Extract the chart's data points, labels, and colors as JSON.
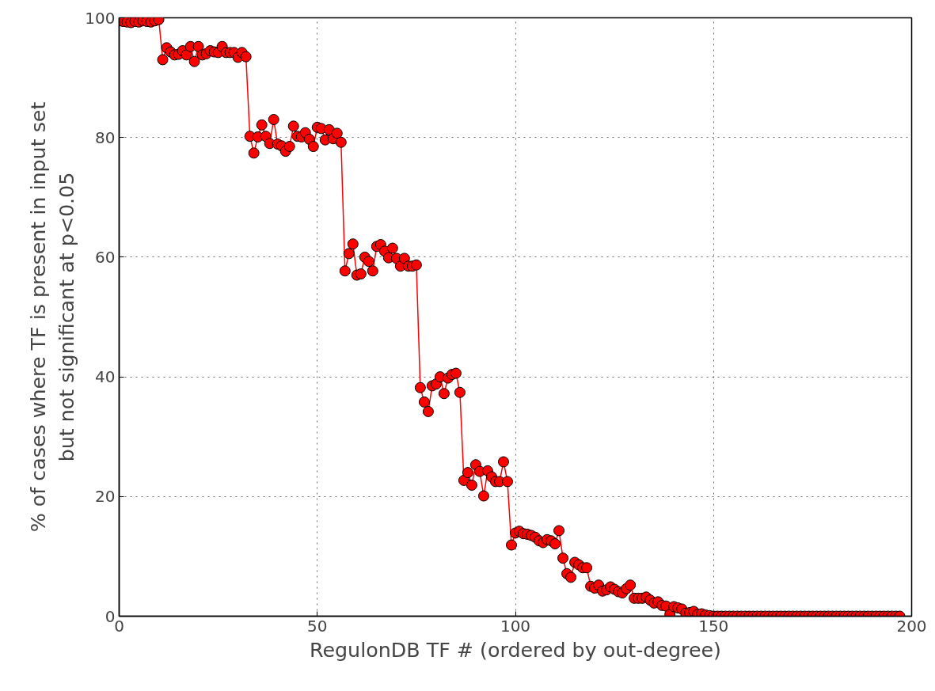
{
  "chart_data": {
    "type": "line",
    "xlabel": "RegulonDB TF # (ordered by out-degree)",
    "ylabel": "% of cases where TF is present in input set\nbut not significant at p<0.05",
    "xlim": [
      0,
      200
    ],
    "ylim": [
      0,
      100
    ],
    "xticks": [
      0,
      50,
      100,
      150,
      200
    ],
    "yticks": [
      0,
      20,
      40,
      60,
      80,
      100
    ],
    "grid": true,
    "marker": "circle",
    "line_style": "solid",
    "x": [
      0,
      1,
      2,
      3,
      4,
      5,
      6,
      7,
      8,
      9,
      10,
      11,
      12,
      13,
      14,
      15,
      16,
      17,
      18,
      19,
      20,
      21,
      22,
      23,
      24,
      25,
      26,
      27,
      28,
      29,
      30,
      31,
      32,
      33,
      34,
      35,
      36,
      37,
      38,
      39,
      40,
      41,
      42,
      43,
      44,
      45,
      46,
      47,
      48,
      49,
      50,
      51,
      52,
      53,
      54,
      55,
      56,
      57,
      58,
      59,
      60,
      61,
      62,
      63,
      64,
      65,
      66,
      67,
      68,
      69,
      70,
      71,
      72,
      73,
      74,
      75,
      76,
      77,
      78,
      79,
      80,
      81,
      82,
      83,
      84,
      85,
      86,
      87,
      88,
      89,
      90,
      91,
      92,
      93,
      94,
      95,
      96,
      97,
      98,
      99,
      100,
      101,
      102,
      103,
      104,
      105,
      106,
      107,
      108,
      109,
      110,
      111,
      112,
      113,
      114,
      115,
      116,
      117,
      118,
      119,
      120,
      121,
      122,
      123,
      124,
      125,
      126,
      127,
      128,
      129,
      130,
      131,
      132,
      133,
      134,
      135,
      136,
      137,
      138,
      139,
      140,
      141,
      142,
      143,
      144,
      145,
      146,
      147,
      148,
      149,
      150,
      151,
      152,
      153,
      154,
      155,
      156,
      157,
      158,
      159,
      160,
      161,
      162,
      163,
      164,
      165,
      166,
      167,
      168,
      169,
      170,
      171,
      172,
      173,
      174,
      175,
      176,
      177,
      178,
      179,
      180,
      181,
      182,
      183,
      184,
      185,
      186,
      187,
      188,
      189,
      190,
      191,
      192,
      193,
      194,
      195,
      196,
      197
    ],
    "series": [
      {
        "color": "#ff0000",
        "values": [
          99.5,
          99.4,
          99.3,
          99.2,
          99.4,
          99.3,
          99.5,
          99.4,
          99.3,
          99.5,
          99.7,
          93.0,
          95.0,
          94.3,
          93.8,
          93.9,
          94.5,
          93.8,
          95.2,
          92.7,
          95.2,
          93.8,
          94.0,
          94.5,
          94.3,
          94.2,
          95.2,
          94.2,
          94.2,
          94.2,
          93.4,
          94.2,
          93.5,
          80.2,
          77.4,
          80.1,
          82.1,
          80.2,
          79.0,
          83.0,
          78.9,
          78.6,
          77.7,
          78.5,
          81.9,
          80.2,
          80.1,
          80.8,
          79.7,
          78.5,
          81.7,
          81.5,
          79.6,
          81.3,
          79.8,
          80.7,
          79.2,
          57.7,
          60.6,
          62.2,
          57.0,
          57.2,
          60.0,
          59.3,
          57.7,
          61.8,
          62.1,
          61.0,
          59.9,
          61.5,
          59.8,
          58.5,
          59.8,
          58.5,
          58.5,
          58.7,
          38.2,
          35.8,
          34.2,
          38.5,
          38.8,
          40.0,
          37.2,
          39.8,
          40.4,
          40.6,
          37.4,
          22.7,
          24.0,
          21.9,
          25.3,
          24.2,
          20.1,
          24.3,
          23.3,
          22.5,
          22.5,
          25.8,
          22.5,
          11.9,
          13.9,
          14.2,
          13.8,
          13.7,
          13.5,
          13.2,
          12.6,
          12.3,
          12.8,
          12.6,
          12.1,
          14.3,
          9.7,
          7.1,
          6.5,
          9.0,
          8.6,
          8.1,
          8.1,
          5.0,
          4.7,
          5.2,
          4.2,
          4.4,
          4.9,
          4.5,
          4.1,
          3.9,
          4.6,
          5.2,
          3.0,
          3.0,
          3.0,
          3.2,
          2.7,
          2.2,
          2.4,
          1.8,
          1.7,
          0.3,
          1.6,
          1.4,
          1.2,
          0.5,
          0.6,
          0.8,
          0.3,
          0.4,
          0.2,
          0.1,
          0,
          0,
          0,
          0,
          0,
          0,
          0,
          0,
          0,
          0,
          0,
          0,
          0,
          0,
          0,
          0,
          0,
          0,
          0,
          0,
          0,
          0,
          0,
          0,
          0,
          0,
          0,
          0,
          0,
          0,
          0,
          0,
          0,
          0,
          0,
          0,
          0,
          0,
          0,
          0,
          0,
          0,
          0,
          0,
          0,
          0,
          0,
          0
        ]
      }
    ]
  }
}
